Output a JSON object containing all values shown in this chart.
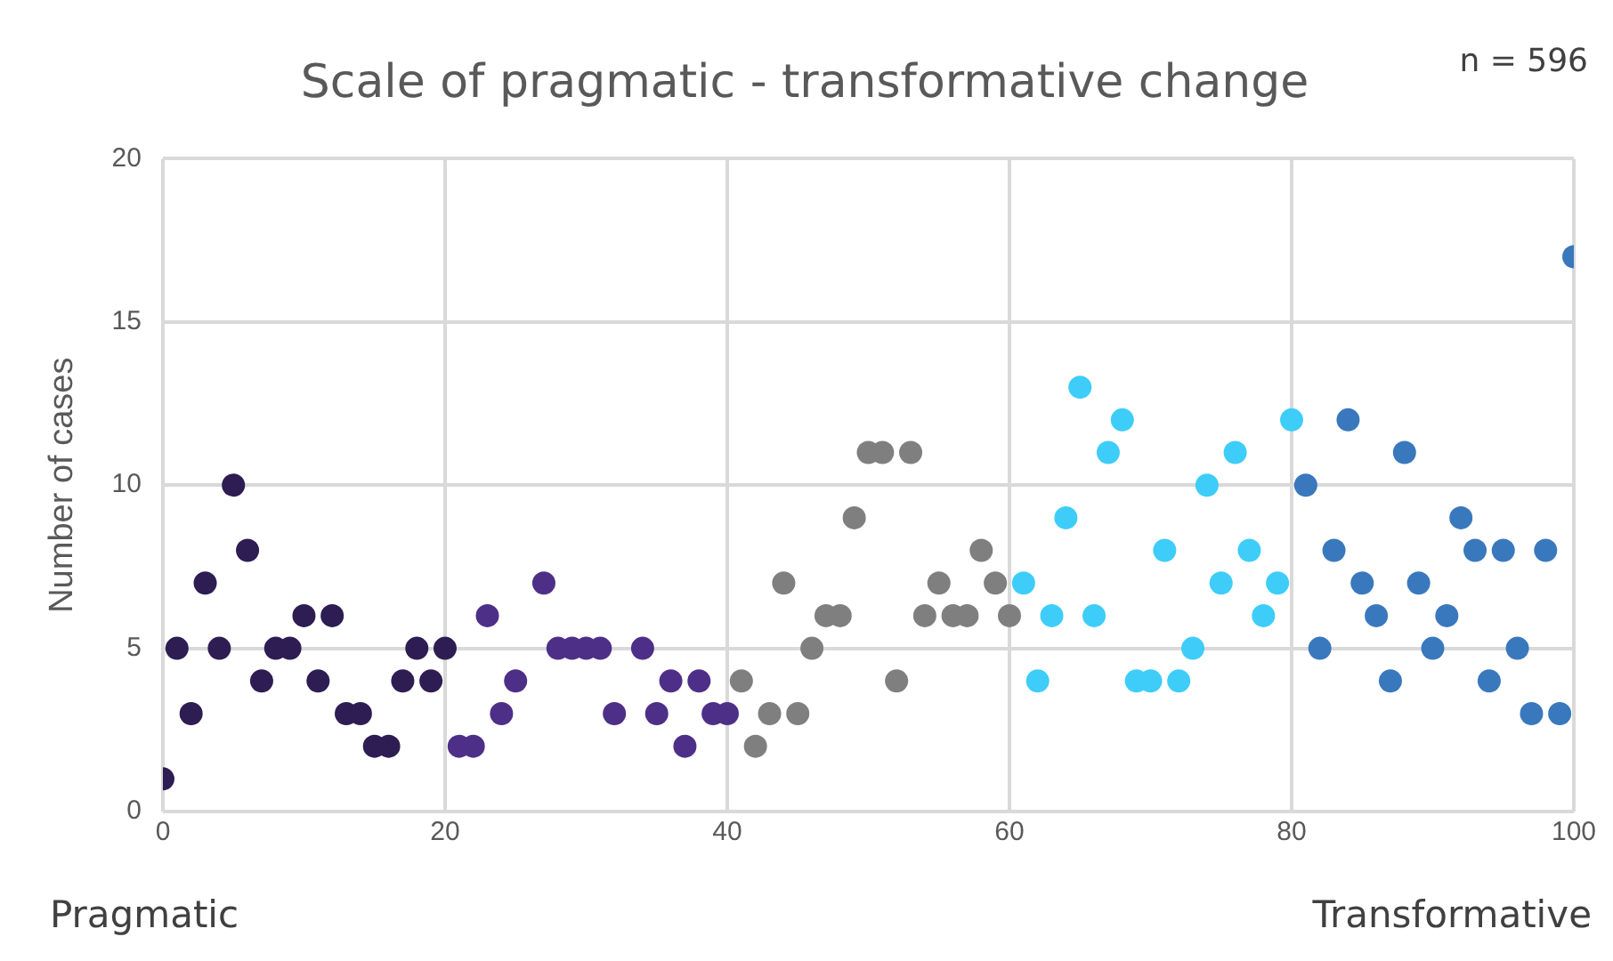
{
  "chart_data": {
    "type": "scatter",
    "title": "Scale of pragmatic - transformative change",
    "ylabel": "Number of cases",
    "annotations": [
      "n = 596",
      "Pragmatic",
      "Transformative"
    ],
    "xlim": [
      0,
      100
    ],
    "xticks": [
      0,
      20,
      40,
      60,
      80,
      100
    ],
    "ylim": [
      0,
      20
    ],
    "yticks": [
      0,
      5,
      10,
      15,
      20
    ],
    "grid": true,
    "legend": false,
    "marker": "circle",
    "series": [
      {
        "color": "#2d1d52",
        "x": [
          0,
          1,
          2,
          3,
          4,
          5,
          6,
          7,
          8,
          9,
          10,
          11,
          12,
          13,
          14,
          15,
          16,
          17,
          18,
          19,
          20
        ],
        "values": [
          1,
          5,
          3,
          7,
          5,
          10,
          8,
          4,
          5,
          5,
          6,
          4,
          6,
          3,
          3,
          2,
          2,
          4,
          5,
          4,
          5
        ]
      },
      {
        "color": "#4e2f88",
        "x": [
          21,
          22,
          23,
          24,
          25,
          27,
          28,
          29,
          30,
          31,
          32,
          34,
          35,
          36,
          37,
          38,
          39,
          40
        ],
        "values": [
          2,
          2,
          6,
          3,
          4,
          7,
          5,
          5,
          5,
          5,
          3,
          5,
          3,
          4,
          2,
          4,
          3,
          3
        ]
      },
      {
        "color": "#7f7f7f",
        "x": [
          41,
          42,
          43,
          44,
          45,
          46,
          47,
          48,
          49,
          50,
          51,
          52,
          53,
          54,
          55,
          56,
          57,
          58,
          59,
          60
        ],
        "values": [
          4,
          2,
          3,
          7,
          3,
          5,
          6,
          6,
          9,
          11,
          11,
          4,
          11,
          6,
          7,
          6,
          6,
          8,
          7,
          6
        ]
      },
      {
        "color": "#3ecdf8",
        "x": [
          61,
          62,
          63,
          64,
          65,
          66,
          67,
          68,
          69,
          70,
          71,
          72,
          73,
          74,
          75,
          76,
          77,
          78,
          79,
          80
        ],
        "values": [
          7,
          4,
          6,
          9,
          13,
          6,
          11,
          12,
          4,
          4,
          8,
          4,
          5,
          10,
          7,
          11,
          8,
          6,
          7,
          12
        ]
      },
      {
        "color": "#3a78bd",
        "x": [
          81,
          82,
          83,
          84,
          85,
          86,
          87,
          88,
          89,
          90,
          91,
          92,
          93,
          94,
          95,
          96,
          97,
          98,
          99,
          100
        ],
        "values": [
          10,
          5,
          8,
          12,
          7,
          6,
          4,
          11,
          7,
          5,
          6,
          9,
          8,
          4,
          8,
          5,
          3,
          8,
          3,
          17
        ]
      }
    ]
  }
}
